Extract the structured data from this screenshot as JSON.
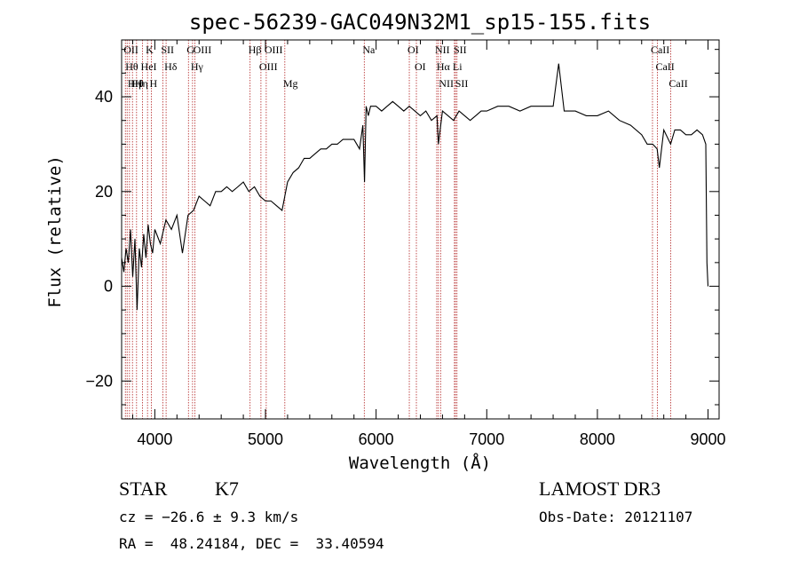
{
  "title": "spec-56239-GAC049N32M1_sp15-155.fits",
  "xlabel": "Wavelength (Å)",
  "ylabel": "Flux (relative)",
  "footer": {
    "class": "STAR",
    "subclass": "K7",
    "cz": "cz = −26.6 ± 9.3 km/s",
    "radec": "RA =  48.24184, DEC =  33.40594",
    "survey": "LAMOST DR3",
    "obsdate": "Obs-Date: 20121107"
  },
  "chart_data": {
    "type": "line",
    "title": "spec-56239-GAC049N32M1_sp15-155.fits",
    "xlabel": "Wavelength (Å)",
    "ylabel": "Flux (relative)",
    "xlim": [
      3700,
      9100
    ],
    "ylim": [
      -28,
      52
    ],
    "xticks": [
      4000,
      5000,
      6000,
      7000,
      8000,
      9000
    ],
    "yticks": [
      -20,
      0,
      20,
      40
    ],
    "grid": false,
    "series": [
      {
        "x": [
          3700,
          3720,
          3740,
          3760,
          3780,
          3800,
          3820,
          3840,
          3860,
          3880,
          3900,
          3920,
          3940,
          3960,
          3980,
          4000,
          4050,
          4100,
          4150,
          4200,
          4250,
          4300,
          4350,
          4400,
          4450,
          4500,
          4550,
          4600,
          4650,
          4700,
          4750,
          4800,
          4850,
          4900,
          4950,
          5000,
          5050,
          5100,
          5150,
          5200,
          5250,
          5300,
          5350,
          5400,
          5450,
          5500,
          5550,
          5600,
          5650,
          5700,
          5750,
          5800,
          5850,
          5880,
          5895,
          5910,
          5930,
          5950,
          6000,
          6050,
          6100,
          6150,
          6200,
          6250,
          6300,
          6350,
          6400,
          6450,
          6500,
          6550,
          6563,
          6600,
          6650,
          6700,
          6750,
          6800,
          6850,
          6900,
          6950,
          7000,
          7100,
          7200,
          7300,
          7400,
          7500,
          7600,
          7650,
          7700,
          7800,
          7900,
          8000,
          8100,
          8200,
          8300,
          8400,
          8450,
          8500,
          8540,
          8560,
          8600,
          8662,
          8700,
          8750,
          8800,
          8850,
          8900,
          8950,
          8980,
          8990,
          9000
        ],
        "y": [
          6,
          3,
          8,
          5,
          12,
          2,
          10,
          -5,
          8,
          4,
          11,
          6,
          13,
          9,
          7,
          12,
          9,
          14,
          12,
          15,
          7,
          15,
          16,
          19,
          18,
          17,
          20,
          20,
          21,
          20,
          21,
          22,
          20,
          21,
          19,
          18,
          18,
          17,
          16,
          22,
          24,
          25,
          27,
          27,
          28,
          29,
          29,
          30,
          30,
          31,
          31,
          31,
          29,
          34,
          22,
          38,
          36,
          38,
          38,
          37,
          38,
          39,
          38,
          37,
          38,
          37,
          36,
          37,
          35,
          36,
          30,
          37,
          36,
          35,
          37,
          36,
          35,
          36,
          37,
          37,
          38,
          38,
          37,
          38,
          38,
          38,
          47,
          37,
          37,
          36,
          36,
          37,
          35,
          34,
          32,
          30,
          30,
          29,
          25,
          33,
          30,
          33,
          33,
          32,
          32,
          33,
          32,
          30,
          5,
          0
        ]
      }
    ],
    "lines": [
      {
        "x": 3734,
        "label": "OII"
      },
      {
        "x": 3750,
        "label": "Hθ"
      },
      {
        "x": 3771,
        "label": "Hη"
      },
      {
        "x": 3798,
        "label": "Hθ"
      },
      {
        "x": 3835,
        "label": "Hη"
      },
      {
        "x": 3889,
        "label": "HeI"
      },
      {
        "x": 3934,
        "label": "K"
      },
      {
        "x": 3969,
        "label": "H"
      },
      {
        "x": 4072,
        "label": "SII"
      },
      {
        "x": 4102,
        "label": "Hδ"
      },
      {
        "x": 4304,
        "label": "G"
      },
      {
        "x": 4341,
        "label": "Hγ"
      },
      {
        "x": 4363,
        "label": "OIII"
      },
      {
        "x": 4861,
        "label": "Hβ"
      },
      {
        "x": 4959,
        "label": "OIII"
      },
      {
        "x": 5007,
        "label": "OIII"
      },
      {
        "x": 5175,
        "label": "Mg"
      },
      {
        "x": 5893,
        "label": "Na"
      },
      {
        "x": 6300,
        "label": "OI"
      },
      {
        "x": 6364,
        "label": "OI"
      },
      {
        "x": 6548,
        "label": "NII"
      },
      {
        "x": 6563,
        "label": "Hα"
      },
      {
        "x": 6583,
        "label": "NII"
      },
      {
        "x": 6708,
        "label": "Li"
      },
      {
        "x": 6717,
        "label": "SII"
      },
      {
        "x": 6731,
        "label": "SII"
      },
      {
        "x": 8498,
        "label": "CaII"
      },
      {
        "x": 8542,
        "label": "CaII"
      },
      {
        "x": 8662,
        "label": "CaII"
      }
    ]
  }
}
